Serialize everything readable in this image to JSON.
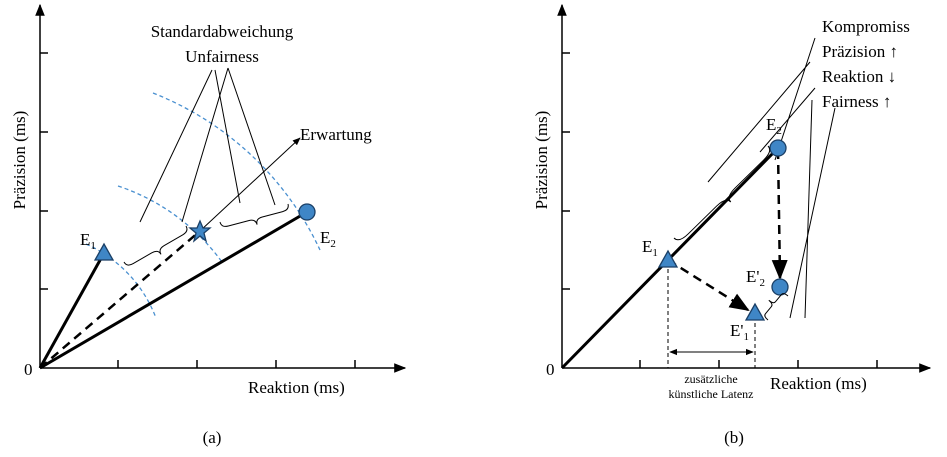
{
  "panel_a": {
    "caption": "(a)",
    "x_axis": "Reaktion (ms)",
    "y_axis": "Präzision (ms)",
    "origin": "0",
    "std_label": "Standardabweichung",
    "unfair_label": "Unfairness",
    "expect_label": "Erwartung",
    "e1": {
      "base": "E",
      "sub": "1"
    },
    "e2": {
      "base": "E",
      "sub": "2"
    }
  },
  "panel_b": {
    "caption": "(b)",
    "x_axis": "Reaktion (ms)",
    "y_axis": "Präzision (ms)",
    "origin": "0",
    "tradeoff": [
      "Kompromiss",
      "Präzision ↑",
      "Reaktion ↓",
      "Fairness ↑"
    ],
    "latency": [
      "zusätzliche",
      "künstliche Latenz"
    ],
    "e1": {
      "base": "E",
      "sub": "1"
    },
    "e2": {
      "base": "E",
      "sub": "2"
    },
    "e1p": {
      "base": "E'",
      "sub": "1"
    },
    "e2p": {
      "base": "E'",
      "sub": "2"
    }
  }
}
